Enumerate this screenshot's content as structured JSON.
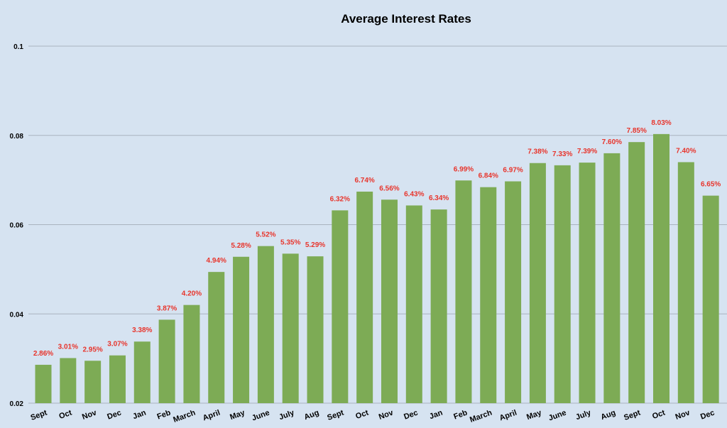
{
  "chart_data": {
    "type": "bar",
    "title": "Average Interest Rates",
    "xlabel": "",
    "ylabel": "",
    "ylim": [
      0.02,
      0.1
    ],
    "yticks": [
      "0.02",
      "0.04",
      "0.06",
      "0.08",
      "0.1"
    ],
    "grid": true,
    "categories": [
      "Sept",
      "Oct",
      "Nov",
      "Dec",
      "Jan",
      "Feb",
      "March",
      "April",
      "May",
      "June",
      "July",
      "Aug",
      "Sept",
      "Oct",
      "Nov",
      "Dec",
      "Jan",
      "Feb",
      "March",
      "April",
      "May",
      "June",
      "July",
      "Aug",
      "Sept",
      "Oct",
      "Nov",
      "Dec"
    ],
    "values": [
      0.0286,
      0.0301,
      0.0295,
      0.0307,
      0.0338,
      0.0387,
      0.042,
      0.0494,
      0.0528,
      0.0552,
      0.0535,
      0.0529,
      0.0632,
      0.0674,
      0.0656,
      0.0643,
      0.0634,
      0.0699,
      0.0684,
      0.0697,
      0.0738,
      0.0733,
      0.0739,
      0.076,
      0.0785,
      0.0803,
      0.074,
      0.0665
    ],
    "data_labels": [
      "2.86%",
      "3.01%",
      "2.95%",
      "3.07%",
      "3.38%",
      "3.87%",
      "4.20%",
      "4.94%",
      "5.28%",
      "5.52%",
      "5.35%",
      "5.29%",
      "6.32%",
      "6.74%",
      "6.56%",
      "6.43%",
      "6.34%",
      "6.99%",
      "6.84%",
      "6.97%",
      "7.38%",
      "7.33%",
      "7.39%",
      "7.60%",
      "7.85%",
      "8.03%",
      "7.40%",
      "6.65%"
    ],
    "colors": {
      "bar": "#7dab55",
      "label": "#e8342b",
      "grid": "#a9b3bf",
      "background": "#d6e3f1"
    }
  }
}
